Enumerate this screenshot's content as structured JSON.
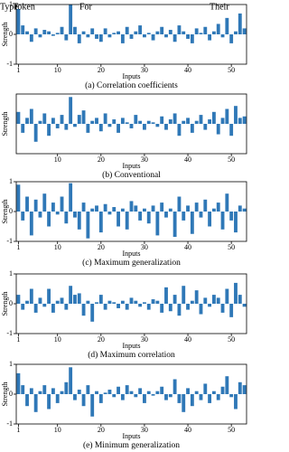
{
  "chart_data": [
    {
      "type": "bar",
      "title": "(a) Correlation coefficients",
      "xlabel": "Inputs",
      "ylabel": "Strength",
      "color": "#2f78b7",
      "annotations": [
        "Type",
        "Token",
        "For",
        "Their"
      ],
      "x": [
        1,
        2,
        3,
        4,
        5,
        6,
        7,
        8,
        9,
        10,
        11,
        12,
        13,
        14,
        15,
        16,
        17,
        18,
        19,
        20,
        21,
        22,
        23,
        24,
        25,
        26,
        27,
        28,
        29,
        30,
        31,
        32,
        33,
        34,
        35,
        36,
        37,
        38,
        39,
        40,
        41,
        42,
        43,
        44,
        45,
        46,
        47,
        48,
        49,
        50,
        51,
        52,
        53
      ],
      "values": [
        0.85,
        0.3,
        0.1,
        -0.25,
        0.2,
        -0.1,
        0.15,
        0.1,
        -0.05,
        0.05,
        0.25,
        -0.2,
        1.0,
        0.25,
        -0.3,
        0.1,
        -0.1,
        0.2,
        -0.15,
        -0.25,
        0.2,
        -0.1,
        0.05,
        0.1,
        -0.3,
        0.25,
        -0.15,
        0.1,
        0.3,
        -0.1,
        0.05,
        -0.2,
        0.1,
        0.25,
        -0.1,
        0.15,
        -0.25,
        0.3,
        0.1,
        -0.15,
        -0.3,
        0.2,
        0.05,
        0.25,
        -0.2,
        0.1,
        0.35,
        -0.1,
        0.55,
        -0.3,
        0.1,
        0.7,
        0.2
      ],
      "xlim": [
        0.5,
        53.5
      ],
      "xticks": [
        1,
        10,
        20,
        30,
        40,
        50
      ],
      "ylim": [
        -1,
        1
      ],
      "yticks": [
        -1,
        0,
        1
      ]
    },
    {
      "type": "bar",
      "title": "(b) Conventional",
      "xlabel": "Inputs",
      "ylabel": "Strength",
      "color": "#2f78b7",
      "x": [
        1,
        2,
        3,
        4,
        5,
        6,
        7,
        8,
        9,
        10,
        11,
        12,
        13,
        14,
        15,
        16,
        17,
        18,
        19,
        20,
        21,
        22,
        23,
        24,
        25,
        26,
        27,
        28,
        29,
        30,
        31,
        32,
        33,
        34,
        35,
        36,
        37,
        38,
        39,
        40,
        41,
        42,
        43,
        44,
        45,
        46,
        47,
        48,
        49,
        50,
        51,
        52,
        53
      ],
      "values": [
        0.4,
        -0.3,
        0.2,
        0.5,
        -0.6,
        0.1,
        0.35,
        -0.4,
        0.2,
        -0.15,
        0.3,
        -0.2,
        0.9,
        -0.1,
        0.3,
        0.45,
        -0.3,
        0.1,
        0.2,
        -0.25,
        0.35,
        -0.1,
        0.15,
        -0.3,
        0.2,
        0.05,
        -0.15,
        0.3,
        0.1,
        -0.2,
        0.1,
        0.05,
        -0.1,
        0.25,
        -0.2,
        0.15,
        0.35,
        -0.4,
        0.1,
        0.2,
        -0.3,
        0.1,
        0.3,
        -0.2,
        0.15,
        0.4,
        -0.35,
        0.2,
        0.5,
        -0.4,
        0.6,
        0.2,
        0.25
      ],
      "xlim": [
        0.5,
        53.5
      ],
      "xticks": [
        10,
        20,
        30,
        40,
        50
      ],
      "ylim": [
        -1,
        1
      ]
    },
    {
      "type": "bar",
      "title": "(c) Maximum generalization",
      "xlabel": "Inputs",
      "ylabel": "Strength",
      "color": "#2f78b7",
      "x": [
        1,
        2,
        3,
        4,
        5,
        6,
        7,
        8,
        9,
        10,
        11,
        12,
        13,
        14,
        15,
        16,
        17,
        18,
        19,
        20,
        21,
        22,
        23,
        24,
        25,
        26,
        27,
        28,
        29,
        30,
        31,
        32,
        33,
        34,
        35,
        36,
        37,
        38,
        39,
        40,
        41,
        42,
        43,
        44,
        45,
        46,
        47,
        48,
        49,
        50,
        51,
        52,
        53
      ],
      "values": [
        0.9,
        -0.3,
        0.5,
        -0.8,
        0.4,
        -0.2,
        0.6,
        -0.5,
        0.3,
        -0.1,
        0.5,
        -0.4,
        0.95,
        -0.2,
        -0.6,
        0.3,
        -0.9,
        0.1,
        0.2,
        -0.7,
        0.25,
        -0.1,
        0.15,
        -0.5,
        0.1,
        -0.6,
        0.35,
        0.2,
        -0.3,
        0.1,
        -0.4,
        0.2,
        -0.8,
        0.3,
        -0.2,
        0.1,
        -0.85,
        0.5,
        -0.3,
        0.2,
        -0.75,
        0.3,
        -0.2,
        0.4,
        -0.5,
        0.1,
        0.3,
        -0.6,
        0.6,
        -0.3,
        -0.7,
        0.2,
        0.1
      ],
      "xlim": [
        0.5,
        53.5
      ],
      "xticks": [
        1,
        10,
        20,
        30,
        40,
        50
      ],
      "ylim": [
        -1,
        1
      ],
      "yticks": [
        -1,
        0,
        1
      ]
    },
    {
      "type": "bar",
      "title": "(d) Maximum correlation",
      "xlabel": "Inputs",
      "ylabel": "Strength",
      "color": "#2f78b7",
      "x": [
        1,
        2,
        3,
        4,
        5,
        6,
        7,
        8,
        9,
        10,
        11,
        12,
        13,
        14,
        15,
        16,
        17,
        18,
        19,
        20,
        21,
        22,
        23,
        24,
        25,
        26,
        27,
        28,
        29,
        30,
        31,
        32,
        33,
        34,
        35,
        36,
        37,
        38,
        39,
        40,
        41,
        42,
        43,
        44,
        45,
        46,
        47,
        48,
        49,
        50,
        51,
        52,
        53
      ],
      "values": [
        0.3,
        -0.2,
        0.1,
        0.5,
        -0.3,
        0.2,
        -0.1,
        0.5,
        -0.3,
        0.1,
        0.2,
        -0.2,
        0.6,
        0.3,
        0.35,
        -0.4,
        0.1,
        -0.6,
        0.05,
        0.3,
        -0.2,
        0.1,
        0.05,
        -0.15,
        0.1,
        -0.2,
        0.2,
        0.1,
        -0.1,
        0.05,
        -0.2,
        0.15,
        0.1,
        -0.3,
        0.55,
        -0.25,
        0.3,
        -0.4,
        0.6,
        -0.2,
        0.1,
        0.45,
        -0.35,
        0.2,
        -0.1,
        0.3,
        0.2,
        -0.3,
        0.5,
        -0.45,
        0.7,
        0.3,
        -0.1
      ],
      "xlim": [
        0.5,
        53.5
      ],
      "xticks": [
        1,
        10,
        20,
        30,
        40,
        50
      ],
      "ylim": [
        -1,
        1
      ],
      "yticks": [
        -1,
        0,
        1
      ]
    },
    {
      "type": "bar",
      "title": "(e) Minimum generalization",
      "xlabel": "Inputs",
      "ylabel": "Strength",
      "color": "#2f78b7",
      "x": [
        1,
        2,
        3,
        4,
        5,
        6,
        7,
        8,
        9,
        10,
        11,
        12,
        13,
        14,
        15,
        16,
        17,
        18,
        19,
        20,
        21,
        22,
        23,
        24,
        25,
        26,
        27,
        28,
        29,
        30,
        31,
        32,
        33,
        34,
        35,
        36,
        37,
        38,
        39,
        40,
        41,
        42,
        43,
        44,
        45,
        46,
        47,
        48,
        49,
        50,
        51,
        52,
        53
      ],
      "values": [
        0.7,
        0.3,
        -0.4,
        0.2,
        -0.6,
        0.1,
        0.3,
        -0.5,
        0.2,
        -0.3,
        0.1,
        0.4,
        0.9,
        -0.2,
        0.15,
        -0.4,
        0.3,
        -0.75,
        0.1,
        -0.3,
        0.05,
        0.15,
        -0.1,
        0.25,
        -0.2,
        0.3,
        0.1,
        -0.1,
        0.2,
        -0.3,
        0.1,
        -0.05,
        0.1,
        0.25,
        -0.2,
        -0.1,
        0.5,
        -0.3,
        -0.6,
        0.2,
        -0.4,
        0.1,
        -0.2,
        0.35,
        -0.3,
        0.1,
        -0.2,
        0.25,
        0.6,
        -0.1,
        -0.5,
        0.4,
        0.3
      ],
      "xlim": [
        0.5,
        53.5
      ],
      "xticks": [
        1,
        10,
        20,
        30,
        40,
        50
      ],
      "ylim": [
        -1,
        1
      ],
      "yticks": [
        -1,
        0,
        1
      ]
    }
  ]
}
